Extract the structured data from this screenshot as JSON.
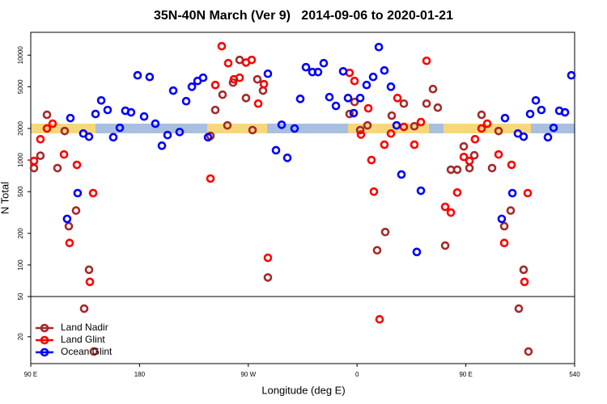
{
  "chart_data": {
    "type": "scatter",
    "title": "35N-40N March (Ver 9)   2014-09-06 to 2020-01-21",
    "x_label": "Longitude (deg E)",
    "y_label": "N Total",
    "xlim": [
      90,
      540
    ],
    "xticks": [
      {
        "value": 90,
        "label": "90 E"
      },
      180,
      {
        "value": 270,
        "label": "90 W"
      },
      {
        "value": 360,
        "label": "0"
      },
      {
        "value": 450,
        "label": "90 E"
      },
      540
    ],
    "ylim": [
      0,
      16500
    ],
    "yscale": "log",
    "linear_below": 50,
    "yticks": [
      20,
      50,
      100,
      200,
      500,
      1000,
      2000,
      5000,
      10000
    ],
    "legend": "lower left",
    "series": [
      {
        "name": "Land Nadir",
        "color": "#a52a2a",
        "x": [
          92.7,
          98.0,
          103.4,
          112.1,
          118.1,
          121.5,
          127.5,
          134.2,
          138.2,
          142.2,
          238.7,
          242.7,
          248.7,
          252.7,
          257.4,
          262.8,
          268.1,
          273.5,
          277.5,
          282.2,
          286.2,
          353.8,
          357.9,
          362.6,
          368.6,
          376.6,
          383.3,
          388.7,
          398.7,
          407.4,
          417.5,
          422.8,
          426.8,
          432.9,
          437.6,
          442.9,
          448.3,
          453.0,
          457.0,
          463.0,
          471.7,
          477.1,
          481.8,
          487.1,
          493.8,
          497.8,
          501.8
        ],
        "values": [
          838,
          1100,
          2700,
          838,
          1890,
          234,
          330,
          41,
          90,
          9,
          1700,
          3000,
          4200,
          2140,
          5470,
          9000,
          3900,
          1930,
          5880,
          4590,
          76,
          2750,
          3580,
          1930,
          2140,
          138,
          206,
          2650,
          3450,
          2100,
          3450,
          4750,
          3160,
          153,
          809,
          809,
          1350,
          838,
          1110,
          2700,
          838,
          1890,
          234,
          330,
          41,
          90,
          9
        ]
      },
      {
        "name": "Land Glint",
        "color": "#ff0000",
        "x": [
          92.7,
          98.0,
          103.4,
          108.1,
          117.5,
          122.1,
          128.2,
          138.9,
          141.6,
          238.7,
          242.7,
          248.0,
          253.4,
          258.1,
          262.8,
          268.1,
          272.8,
          278.2,
          282.9,
          286.2,
          353.8,
          357.9,
          363.2,
          369.3,
          371.9,
          373.9,
          378.6,
          382.6,
          388.0,
          393.4,
          398.7,
          407.4,
          412.8,
          417.5,
          432.9,
          437.6,
          442.9,
          448.3,
          453.0,
          457.6,
          463.0,
          467.7,
          477.1,
          481.8,
          487.8,
          498.5,
          501.2
        ],
        "values": [
          980,
          1580,
          2000,
          2220,
          1130,
          162,
          900,
          69,
          484,
          666,
          5190,
          12170,
          8380,
          5880,
          6090,
          8500,
          9000,
          3450,
          5290,
          117,
          6780,
          5670,
          1750,
          3110,
          1000,
          500,
          33,
          1400,
          1790,
          3900,
          2070,
          1400,
          2300,
          8830,
          358,
          316,
          490,
          1070,
          980,
          1580,
          2000,
          2220,
          1130,
          162,
          900,
          69,
          484
        ]
      },
      {
        "name": "Ocean Glint",
        "color": "#0000ff",
        "x": [
          120.1,
          122.8,
          128.8,
          133.5,
          138.2,
          143.6,
          148.3,
          153.6,
          158.3,
          163.7,
          168.3,
          173.0,
          178.4,
          183.8,
          188.4,
          193.1,
          198.5,
          203.2,
          207.9,
          213.2,
          218.6,
          223.3,
          228.0,
          232.6,
          236.7,
          286.2,
          292.9,
          297.6,
          302.3,
          308.3,
          313.0,
          317.7,
          323.0,
          327.7,
          332.4,
          337.1,
          342.5,
          348.5,
          352.5,
          357.2,
          362.6,
          367.9,
          373.3,
          378.0,
          382.6,
          388.0,
          392.7,
          396.7,
          409.4,
          412.8,
          479.7,
          482.4,
          488.5,
          493.1,
          497.8,
          503.2,
          507.9,
          512.5,
          517.9,
          522.6,
          527.3,
          532.0,
          537.3
        ],
        "values": [
          275,
          2510,
          484,
          1790,
          1670,
          2750,
          3700,
          3000,
          1650,
          2030,
          2950,
          2850,
          6420,
          2600,
          6200,
          2220,
          1370,
          1730,
          4590,
          1850,
          3640,
          5000,
          5670,
          6090,
          1650,
          6650,
          1240,
          2170,
          1050,
          2000,
          3830,
          7670,
          6900,
          6900,
          8380,
          3980,
          3280,
          7010,
          3900,
          2800,
          3900,
          5190,
          6200,
          11940,
          7140,
          5000,
          2140,
          728,
          133,
          510,
          275,
          2510,
          484,
          1790,
          1670,
          2750,
          3700,
          3000,
          1650,
          2030,
          2950,
          2850,
          6420
        ]
      }
    ]
  }
}
